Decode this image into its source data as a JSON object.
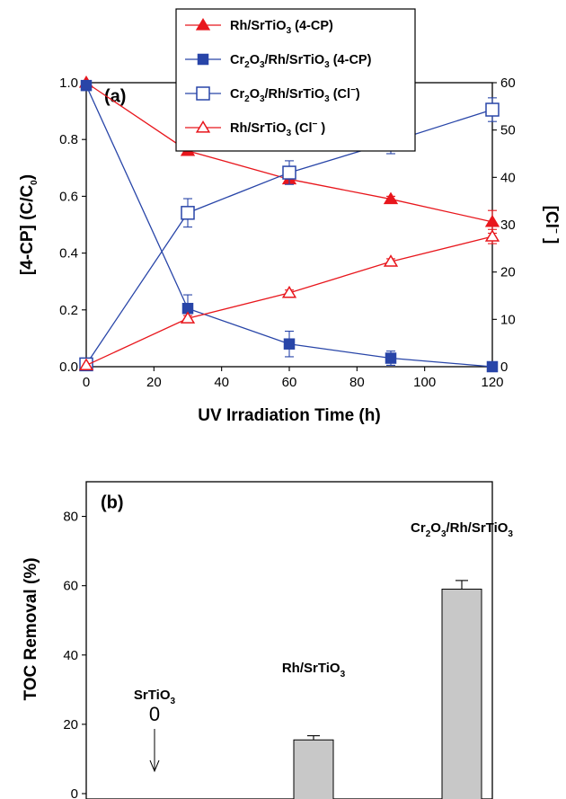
{
  "chart_data": [
    {
      "panel": "(a)",
      "type": "line",
      "xlabel": "UV Irradiation Time (h)",
      "ylabel_left": "[4-CP] (C/C0)",
      "ylabel_right": "[Cl−]",
      "xlim": [
        0,
        120
      ],
      "ylim_left": [
        0,
        1.0
      ],
      "ylim_right": [
        0,
        60
      ],
      "xticks": [
        "0",
        "20",
        "40",
        "60",
        "80",
        "100",
        "120"
      ],
      "yticks_left": [
        "0.0",
        "0.2",
        "0.4",
        "0.6",
        "0.8",
        "1.0"
      ],
      "yticks_right": [
        "0",
        "10",
        "20",
        "30",
        "40",
        "50",
        "60"
      ],
      "legend_position": "top-center",
      "series": [
        {
          "name": "Rh/SrTiO3 (4-CP)",
          "legend": [
            "Rh/SrTiO",
            "3",
            " (4-CP)"
          ],
          "axis": "left",
          "color": "#e8161c",
          "marker": "triangle-filled",
          "x": [
            0,
            30,
            60,
            90,
            120
          ],
          "y": [
            1.0,
            0.76,
            0.66,
            0.59,
            0.51
          ],
          "err": [
            0,
            0.01,
            0.015,
            0.01,
            0.04
          ]
        },
        {
          "name": "Cr2O3/Rh/SrTiO3 (4-CP)",
          "legend": [
            "Cr",
            "2",
            "O",
            "3",
            "/Rh/SrTiO",
            "3",
            " (4-CP)"
          ],
          "axis": "left",
          "color": "#2845a8",
          "marker": "square-filled",
          "x": [
            0,
            30,
            60,
            90,
            120
          ],
          "y": [
            0.99,
            0.205,
            0.08,
            0.03,
            0.0
          ],
          "err": [
            0,
            0.048,
            0.045,
            0.025,
            0.005
          ]
        },
        {
          "name": "Cr2O3/Rh/SrTiO3 (Cl−)",
          "legend": [
            "Cr",
            "2",
            "O",
            "3",
            "/Rh/SrTiO",
            "3",
            " (Cl",
            "−",
            ")"
          ],
          "axis": "right",
          "color": "#2845a8",
          "marker": "square-open",
          "x": [
            0,
            30,
            60,
            90,
            120
          ],
          "y": [
            0.5,
            32.5,
            41.0,
            47.5,
            54.3
          ],
          "err": [
            0,
            3.0,
            2.5,
            2.5,
            2.5
          ]
        },
        {
          "name": "Rh/SrTiO3 (Cl−)",
          "legend": [
            "Rh/SrTiO",
            "3",
            " (Cl",
            "−",
            " )"
          ],
          "axis": "right",
          "color": "#e8161c",
          "marker": "triangle-open",
          "x": [
            0,
            30,
            60,
            90,
            120
          ],
          "y": [
            0.3,
            10.2,
            15.6,
            22.2,
            27.5
          ],
          "err": [
            0,
            0.6,
            0.6,
            0.6,
            1.5
          ]
        }
      ]
    },
    {
      "panel": "(b)",
      "type": "bar",
      "ylabel": "TOC Removal (%)",
      "ylim": [
        0,
        90
      ],
      "yticks": [
        "0",
        "20",
        "40",
        "60",
        "80"
      ],
      "categories": [
        "SrTiO3",
        "Rh/SrTiO3",
        "Cr2O3/Rh/SrTiO3"
      ],
      "category_labels": [
        [
          "SrTiO",
          "3"
        ],
        [
          "Rh/SrTiO",
          "3"
        ],
        [
          "Cr",
          "2",
          "O",
          "3",
          "/Rh/SrTiO",
          "3"
        ]
      ],
      "values": [
        0,
        15.5,
        59.0
      ],
      "errors": [
        0,
        1.2,
        2.5
      ],
      "bar_color": "#c8c8c8",
      "annotation": "0"
    }
  ]
}
